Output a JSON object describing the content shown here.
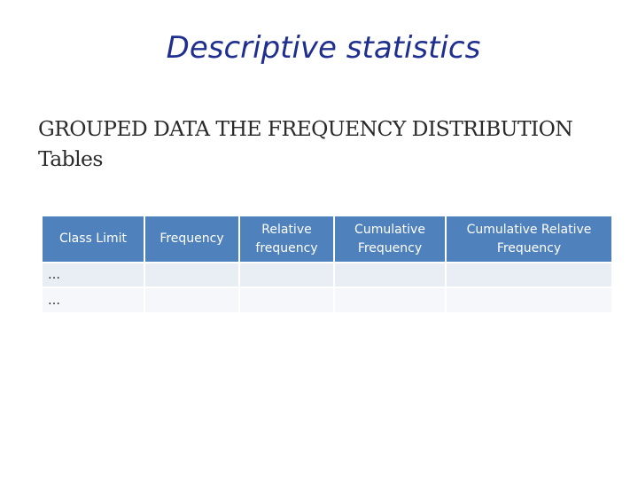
{
  "slide": {
    "title": "Descriptive statistics",
    "subtitle_line1": "GROUPED DATA THE FREQUENCY DISTRIBUTION",
    "subtitle_line2": "Tables"
  },
  "table": {
    "headers": [
      "Class Limit",
      "Frequency",
      "Relative frequency",
      "Cumulative Frequency",
      "Cumulative Relative Frequency"
    ],
    "rows": [
      [
        "…",
        "",
        "",
        "",
        ""
      ],
      [
        "…",
        "",
        "",
        "",
        ""
      ]
    ]
  },
  "colors": {
    "title": "#1f2f8f",
    "header_bg": "#4f81bd",
    "header_text": "#ffffff",
    "row_odd_bg": "#e9edf4",
    "row_even_bg": "#f5f7fa"
  }
}
